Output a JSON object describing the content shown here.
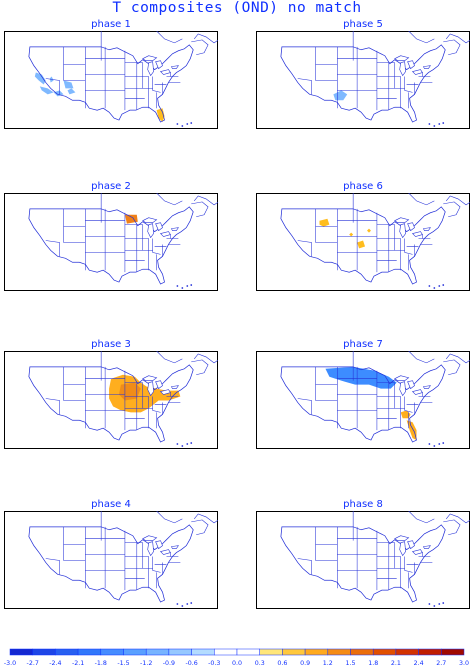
{
  "figure": {
    "title": "T composites (OND)    no match"
  },
  "panels": [
    {
      "id": "phase1",
      "label": "phase 1",
      "anomalies": [
        {
          "region": "nevada-great-basin",
          "color": "#7fb9ff"
        },
        {
          "region": "southern-california",
          "color": "#7fb9ff"
        },
        {
          "region": "arizona",
          "color": "#7fb9ff"
        },
        {
          "region": "florida",
          "color": "#ffbd1e"
        }
      ]
    },
    {
      "id": "phase2",
      "label": "phase 2",
      "anomalies": [
        {
          "region": "north-minnesota",
          "color": "#f08018"
        }
      ]
    },
    {
      "id": "phase3",
      "label": "phase 3",
      "anomalies": [
        {
          "region": "midwest-great-lakes",
          "color": "#ffae1e"
        },
        {
          "region": "upper-midwest-core",
          "color": "#f08c18"
        }
      ]
    },
    {
      "id": "phase4",
      "label": "phase 4",
      "anomalies": []
    },
    {
      "id": "phase5",
      "label": "phase 5",
      "anomalies": [
        {
          "region": "new-mexico-texas",
          "color": "#7fb9ff"
        }
      ]
    },
    {
      "id": "phase6",
      "label": "phase 6",
      "anomalies": [
        {
          "region": "idaho-wyoming",
          "color": "#ffbd1e"
        },
        {
          "region": "kansas",
          "color": "#ffbd1e"
        },
        {
          "region": "nebraska-dot",
          "color": "#ffbd1e"
        },
        {
          "region": "minnesota-dot",
          "color": "#ffbd1e"
        }
      ]
    },
    {
      "id": "phase7",
      "label": "phase 7",
      "anomalies": [
        {
          "region": "northern-plains",
          "color": "#3d8cff"
        },
        {
          "region": "georgia-florida",
          "color": "#ffae1e"
        }
      ]
    },
    {
      "id": "phase8",
      "label": "phase 8",
      "anomalies": []
    }
  ],
  "colorbar": {
    "ticks": [
      "-3.0",
      "-2.7",
      "-2.4",
      "-2.1",
      "-1.8",
      "-1.5",
      "-1.2",
      "-0.9",
      "-0.6",
      "-0.3",
      "0.0",
      "0.3",
      "0.6",
      "0.9",
      "1.2",
      "1.5",
      "1.8",
      "2.1",
      "2.4",
      "2.7",
      "3.0"
    ],
    "colors": [
      "#1428d0",
      "#1e46e6",
      "#2860f0",
      "#3278fa",
      "#468cff",
      "#5aa0ff",
      "#78b4ff",
      "#96c8ff",
      "#b4dcff",
      "#ffffff",
      "#ffffff",
      "#ffe678",
      "#ffc83c",
      "#ffaa1e",
      "#f58c14",
      "#eb6e0a",
      "#e15000",
      "#d23200",
      "#c01e00",
      "#a00a00"
    ]
  }
}
